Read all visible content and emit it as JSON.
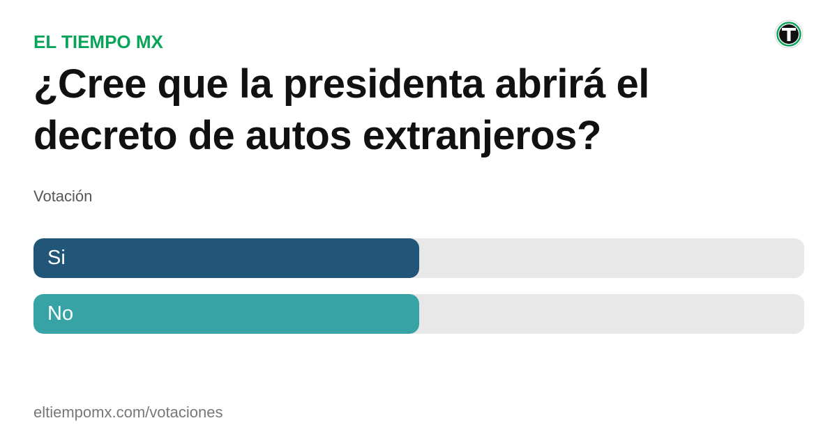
{
  "header": {
    "brand": "EL TIEMPO MX"
  },
  "poll": {
    "question": "¿Cree que la presidenta abrirá el decreto de autos extranjeros?",
    "subtitle": "Votación",
    "options": [
      {
        "label": "Si",
        "fraction": 0.5,
        "color": "#215678"
      },
      {
        "label": "No",
        "fraction": 0.5,
        "color": "#37a3a5"
      }
    ]
  },
  "footer": {
    "url": "eltiempomx.com/votaciones"
  },
  "colors": {
    "brand": "#0aa35a",
    "track": "#e8e8e8",
    "logo_ring": "#0aa35a",
    "logo_fill": "#111111"
  },
  "icons": {
    "logo": "el-tiempo-logo-icon"
  }
}
